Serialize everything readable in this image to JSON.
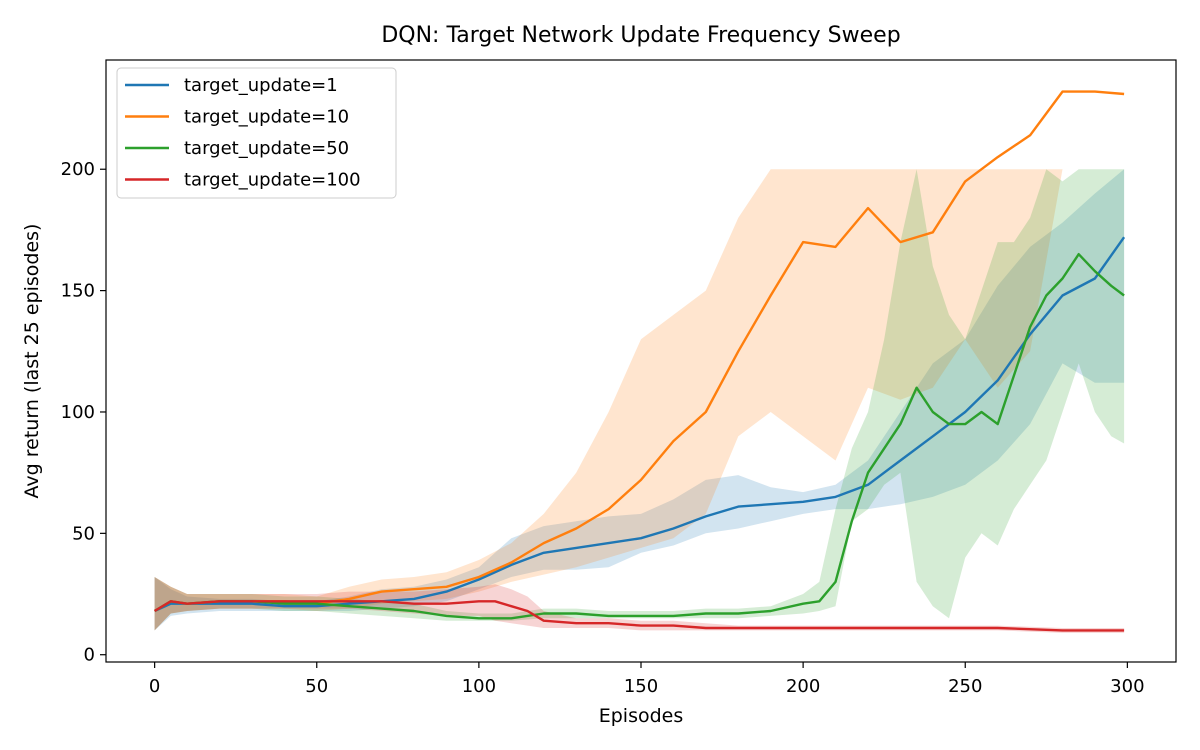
{
  "chart_data": {
    "type": "line",
    "title": "DQN: Target Network Update Frequency Sweep",
    "xlabel": "Episodes",
    "ylabel": "Avg return (last 25 episodes)",
    "xlim": [
      -15,
      315
    ],
    "ylim": [
      -3,
      245
    ],
    "xticks": [
      0,
      50,
      100,
      150,
      200,
      250,
      300
    ],
    "yticks": [
      0,
      50,
      100,
      150,
      200
    ],
    "grid": false,
    "legend_position": "upper-left",
    "series": [
      {
        "name": "target_update=1",
        "color": "#1f77b4",
        "x": [
          0,
          5,
          10,
          20,
          30,
          40,
          50,
          60,
          70,
          80,
          90,
          100,
          110,
          120,
          130,
          140,
          150,
          160,
          170,
          180,
          190,
          200,
          210,
          220,
          230,
          240,
          250,
          260,
          270,
          280,
          290,
          299
        ],
        "y": [
          18,
          21,
          21,
          21,
          21,
          20,
          20,
          21,
          22,
          23,
          26,
          31,
          37,
          42,
          44,
          46,
          48,
          52,
          57,
          61,
          62,
          63,
          65,
          70,
          80,
          90,
          100,
          113,
          132,
          148,
          155,
          172
        ],
        "lower": [
          10,
          16,
          17,
          18,
          18,
          18,
          18,
          18,
          19,
          20,
          22,
          27,
          32,
          35,
          35,
          36,
          42,
          45,
          50,
          52,
          55,
          58,
          60,
          60,
          62,
          65,
          70,
          80,
          95,
          120,
          112,
          112
        ],
        "upper": [
          32,
          27,
          24,
          23,
          23,
          22,
          22,
          24,
          27,
          28,
          31,
          36,
          48,
          53,
          55,
          57,
          58,
          64,
          72,
          74,
          69,
          67,
          70,
          80,
          100,
          120,
          130,
          152,
          168,
          178,
          190,
          200
        ]
      },
      {
        "name": "target_update=10",
        "color": "#ff7f0e",
        "x": [
          0,
          5,
          10,
          20,
          30,
          40,
          50,
          60,
          70,
          80,
          90,
          100,
          110,
          120,
          130,
          140,
          150,
          160,
          170,
          180,
          190,
          200,
          210,
          220,
          230,
          240,
          250,
          260,
          270,
          280,
          290,
          299
        ],
        "y": [
          18,
          22,
          21,
          22,
          22,
          22,
          21,
          23,
          26,
          27,
          28,
          32,
          38,
          46,
          52,
          60,
          72,
          88,
          100,
          125,
          148,
          170,
          168,
          184,
          170,
          174,
          195,
          205,
          214,
          232,
          232,
          231
        ],
        "lower": [
          10,
          17,
          18,
          19,
          19,
          19,
          18,
          19,
          21,
          22,
          23,
          26,
          30,
          33,
          36,
          40,
          44,
          48,
          58,
          90,
          100,
          90,
          80,
          110,
          105,
          110,
          130,
          110,
          125,
          200,
          200,
          200
        ],
        "upper": [
          32,
          28,
          25,
          25,
          25,
          25,
          24,
          28,
          31,
          32,
          34,
          39,
          46,
          58,
          75,
          100,
          130,
          140,
          150,
          180,
          200,
          200,
          200,
          200,
          200,
          200,
          200,
          200,
          200,
          200,
          200,
          200
        ]
      },
      {
        "name": "target_update=50",
        "color": "#2ca02c",
        "x": [
          0,
          5,
          10,
          20,
          30,
          40,
          50,
          60,
          70,
          80,
          90,
          100,
          110,
          120,
          130,
          140,
          150,
          160,
          170,
          180,
          190,
          200,
          205,
          210,
          215,
          220,
          225,
          230,
          235,
          240,
          245,
          250,
          255,
          260,
          265,
          270,
          275,
          280,
          285,
          290,
          295,
          299
        ],
        "y": [
          18,
          22,
          21,
          22,
          22,
          21,
          21,
          20,
          19,
          18,
          16,
          15,
          15,
          17,
          17,
          16,
          16,
          16,
          17,
          17,
          18,
          21,
          22,
          30,
          55,
          75,
          85,
          95,
          110,
          100,
          95,
          95,
          100,
          95,
          115,
          135,
          148,
          155,
          165,
          158,
          152,
          148
        ],
        "lower": [
          10,
          17,
          18,
          19,
          19,
          18,
          18,
          17,
          16,
          15,
          14,
          14,
          14,
          15,
          15,
          15,
          15,
          15,
          15,
          15,
          16,
          17,
          18,
          20,
          55,
          60,
          70,
          75,
          30,
          20,
          15,
          40,
          50,
          45,
          60,
          70,
          80,
          100,
          120,
          100,
          90,
          87
        ],
        "upper": [
          32,
          28,
          25,
          25,
          25,
          24,
          24,
          23,
          22,
          21,
          18,
          17,
          17,
          19,
          19,
          18,
          18,
          18,
          19,
          19,
          20,
          25,
          30,
          60,
          85,
          100,
          130,
          170,
          200,
          160,
          140,
          130,
          150,
          170,
          170,
          180,
          200,
          195,
          200,
          200,
          200,
          200
        ]
      },
      {
        "name": "target_update=100",
        "color": "#d62728",
        "x": [
          0,
          5,
          10,
          20,
          30,
          40,
          50,
          60,
          70,
          80,
          90,
          100,
          105,
          110,
          115,
          120,
          130,
          140,
          150,
          160,
          170,
          180,
          190,
          200,
          220,
          240,
          260,
          280,
          299
        ],
        "y": [
          18,
          22,
          21,
          22,
          22,
          22,
          22,
          22,
          22,
          21,
          21,
          22,
          22,
          20,
          18,
          14,
          13,
          13,
          12,
          12,
          11,
          11,
          11,
          11,
          11,
          11,
          11,
          10,
          10
        ],
        "lower": [
          10,
          17,
          18,
          19,
          19,
          19,
          19,
          19,
          18,
          17,
          16,
          16,
          14,
          13,
          12,
          11,
          11,
          11,
          10,
          10,
          10,
          10,
          10,
          10,
          10,
          10,
          10,
          9,
          9
        ],
        "upper": [
          32,
          28,
          25,
          25,
          25,
          25,
          25,
          26,
          26,
          26,
          27,
          28,
          29,
          27,
          24,
          18,
          15,
          15,
          14,
          14,
          13,
          12,
          12,
          12,
          12,
          12,
          12,
          11,
          11
        ]
      }
    ]
  }
}
